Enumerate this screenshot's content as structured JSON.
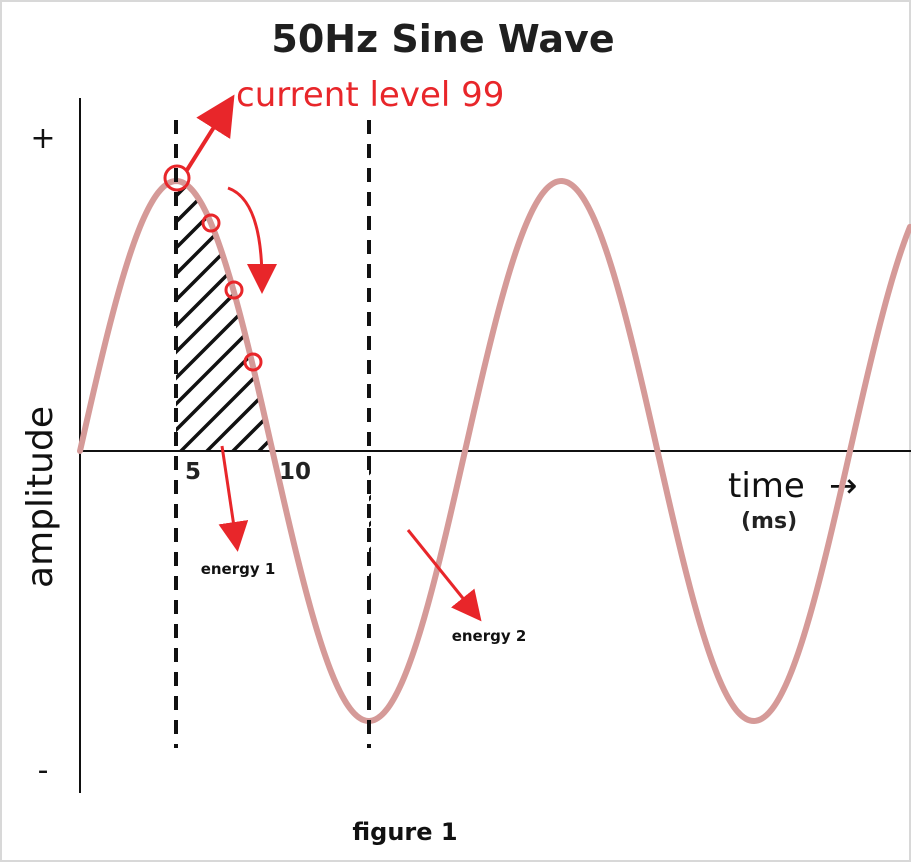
{
  "title": "50Hz Sine Wave",
  "y_axis": {
    "label": "amplitude",
    "plus": "+",
    "minus": "-"
  },
  "x_axis": {
    "label": "time",
    "arrow": "→",
    "unit": "(ms)",
    "ticks": [
      "5",
      "10"
    ]
  },
  "annotations": {
    "current_level": "current level 99",
    "energy1": "energy 1",
    "energy2": "energy 2"
  },
  "caption": "figure 1",
  "colors": {
    "wave": "#d59a98",
    "annotation": "#e8262a",
    "hatch": "#111111",
    "axis": "#111111"
  }
}
